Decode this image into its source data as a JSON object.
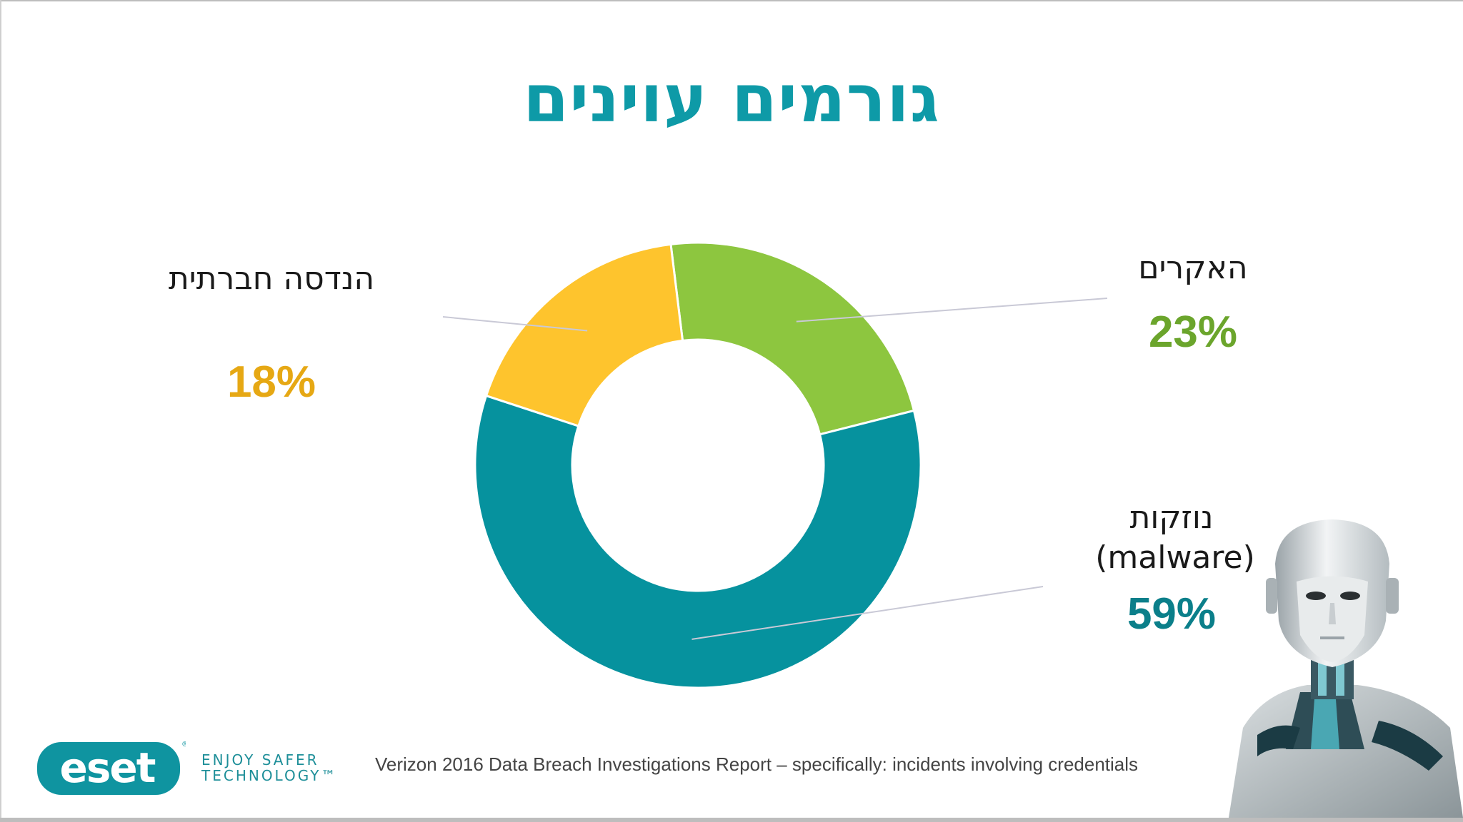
{
  "slide": {
    "title": "גורמים עוינים",
    "source": "Verizon 2016 Data Breach Investigations Report – specifically: incidents involving credentials",
    "logo_text": "eset",
    "tagline_line1": "ENJOY SAFER",
    "tagline_line2": "TECHNOLOGY™"
  },
  "chart_data": {
    "type": "pie",
    "style": "donut",
    "title": "גורמים עוינים",
    "slices": [
      {
        "label": "האקרים",
        "value": 23,
        "display": "23%",
        "color": "#8dc63f",
        "text_color": "#6ba52c"
      },
      {
        "label": "נוזקות",
        "sublabel": "(malware)",
        "value": 59,
        "display": "59%",
        "color": "#06929e",
        "text_color": "#0b7f8a"
      },
      {
        "label": "הנדסה חברתית",
        "value": 18,
        "display": "18%",
        "color": "#fec42d",
        "text_color": "#e6a814"
      }
    ]
  }
}
